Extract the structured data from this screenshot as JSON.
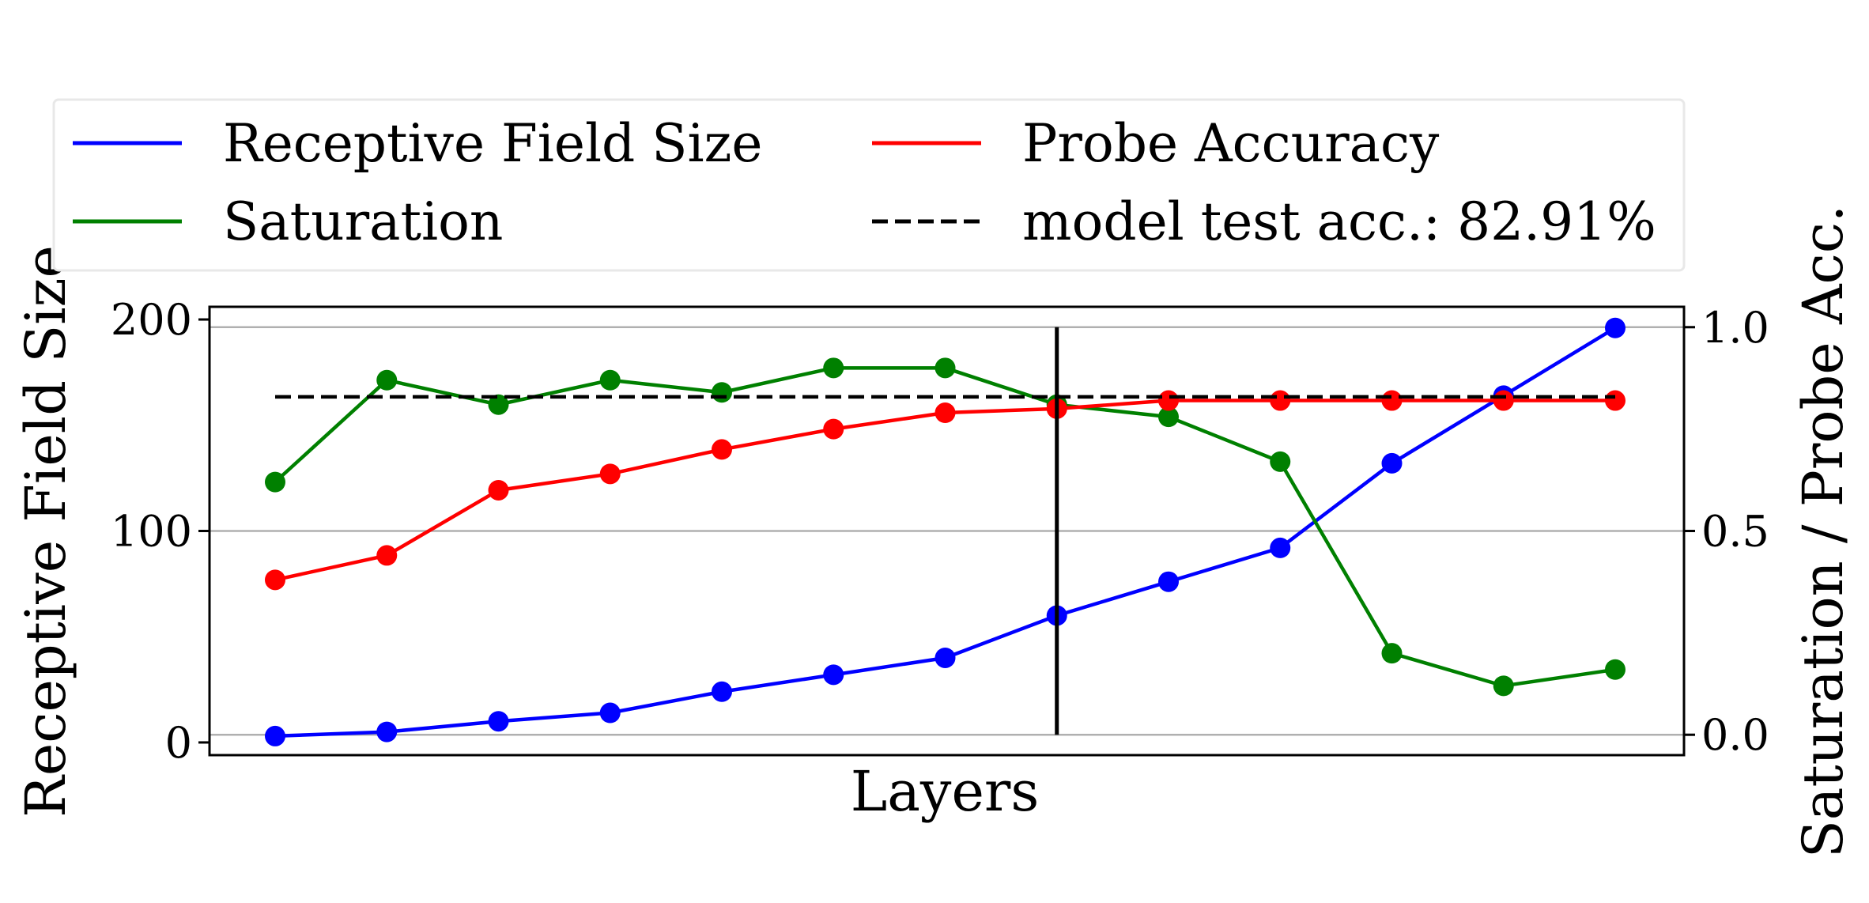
{
  "chart_data": {
    "type": "line",
    "xlabel": "Layers",
    "ylabel_left": "Receptive Field Size",
    "ylabel_right": "Saturation / Probe Acc.",
    "x": [
      1,
      2,
      3,
      4,
      5,
      6,
      7,
      8,
      9,
      10,
      11,
      12,
      13
    ],
    "ylim_left": [
      -6,
      206
    ],
    "ylim_right": [
      -0.05,
      1.05
    ],
    "yticks_left": [
      0,
      100,
      200
    ],
    "ytick_labels_left": [
      "0",
      "100",
      "200"
    ],
    "yticks_right": [
      0.0,
      0.5,
      1.0
    ],
    "ytick_labels_right": [
      "0.0",
      "0.5",
      "1.0"
    ],
    "grid": "horizontal on right axis",
    "legend_position": "top, outside plot, 2 columns",
    "vertical_marker_x": 8,
    "series": [
      {
        "name": "Receptive Field Size",
        "axis": "left",
        "color": "#0000ff",
        "values": [
          3,
          5,
          10,
          14,
          24,
          32,
          40,
          60,
          76,
          92,
          132,
          164,
          196
        ]
      },
      {
        "name": "Saturation",
        "axis": "right",
        "color": "#008000",
        "values": [
          0.62,
          0.87,
          0.81,
          0.87,
          0.84,
          0.9,
          0.9,
          0.81,
          0.78,
          0.67,
          0.2,
          0.12,
          0.16
        ]
      },
      {
        "name": "Probe Accuracy",
        "axis": "right",
        "color": "#ff0000",
        "values": [
          0.38,
          0.44,
          0.6,
          0.64,
          0.7,
          0.75,
          0.79,
          0.8,
          0.82,
          0.82,
          0.82,
          0.82,
          0.82
        ]
      },
      {
        "name": "model test acc.: 82.91%",
        "axis": "right",
        "color": "#000000",
        "style": "dashed",
        "value": 0.8291
      }
    ]
  }
}
